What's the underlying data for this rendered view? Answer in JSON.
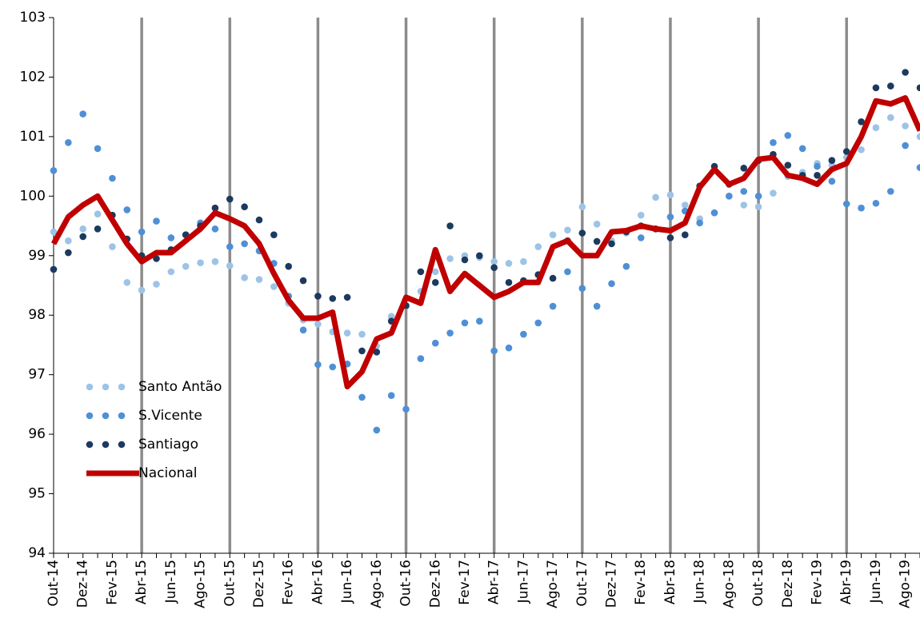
{
  "chart_data": {
    "type": "line",
    "categories": [
      "Out-14",
      null,
      "Dez-14",
      null,
      "Fev-15",
      null,
      "Abr-15",
      null,
      "Jun-15",
      null,
      "Ago-15",
      null,
      "Out-15",
      null,
      "Dez-15",
      null,
      "Fev-16",
      null,
      "Abr-16",
      null,
      "Jun-16",
      null,
      "Ago-16",
      null,
      "Out-16",
      null,
      "Dez-16",
      null,
      "Fev-17",
      null,
      "Abr-17",
      null,
      "Jun-17",
      null,
      "Ago-17",
      null,
      "Out-17",
      null,
      "Dez-17",
      null,
      "Fev-18",
      null,
      "Abr-18",
      null,
      "Jun-18",
      null,
      "Ago-18",
      null,
      "Out-18",
      null,
      "Dez-18",
      null,
      "Fev-19",
      null,
      "Abr-19",
      null,
      "Jun-19",
      null,
      "Ago-19",
      null
    ],
    "series": [
      {
        "name": "Santo Antão",
        "color": "#9dc3e6",
        "style": "dots",
        "values": [
          99.4,
          99.25,
          99.45,
          99.7,
          99.15,
          98.55,
          98.42,
          98.52,
          98.73,
          98.82,
          98.88,
          98.9,
          98.83,
          98.63,
          98.6,
          98.48,
          98.2,
          97.92,
          97.85,
          97.72,
          97.7,
          97.68,
          97.48,
          97.98,
          98.15,
          98.4,
          98.73,
          98.95,
          99.0,
          98.97,
          98.9,
          98.87,
          98.9,
          99.15,
          99.35,
          99.43,
          99.82,
          99.53,
          99.25,
          99.38,
          99.68,
          99.98,
          100.02,
          99.85,
          99.62,
          99.72,
          100.0,
          99.85,
          99.82,
          100.05,
          100.33,
          100.4,
          100.55,
          100.52,
          100.65,
          100.78,
          101.15,
          101.32,
          101.18,
          101.0
        ]
      },
      {
        "name": "S.Vicente",
        "color": "#4f8fd6",
        "style": "dots",
        "values": [
          100.43,
          100.9,
          101.38,
          100.8,
          100.3,
          99.77,
          99.4,
          99.58,
          99.3,
          99.35,
          99.55,
          99.45,
          99.15,
          99.2,
          99.08,
          98.87,
          98.32,
          97.75,
          97.17,
          97.13,
          97.18,
          96.62,
          96.07,
          96.65,
          96.42,
          97.27,
          97.53,
          97.7,
          97.87,
          97.9,
          97.4,
          97.45,
          97.68,
          97.87,
          98.15,
          98.73,
          98.45,
          98.15,
          98.53,
          98.82,
          99.3,
          99.45,
          99.65,
          99.75,
          99.55,
          99.72,
          100.0,
          100.08,
          100.0,
          100.9,
          101.02,
          100.8,
          100.5,
          100.25,
          99.87,
          99.8,
          99.88,
          100.08,
          100.85,
          100.48
        ]
      },
      {
        "name": "Santiago",
        "color": "#1c3a5e",
        "style": "dots",
        "values": [
          98.77,
          99.05,
          99.32,
          99.45,
          99.68,
          99.28,
          99.0,
          98.95,
          99.1,
          99.35,
          99.5,
          99.8,
          99.95,
          99.82,
          99.6,
          99.35,
          98.82,
          98.58,
          98.32,
          98.28,
          98.3,
          97.4,
          97.38,
          97.9,
          98.16,
          98.73,
          98.55,
          99.5,
          98.93,
          99.0,
          98.8,
          98.55,
          98.58,
          98.68,
          98.62,
          99.25,
          99.38,
          99.24,
          99.2,
          99.4,
          99.5,
          99.45,
          99.3,
          99.35,
          100.17,
          100.5,
          100.2,
          100.47,
          100.6,
          100.7,
          100.52,
          100.35,
          100.35,
          100.6,
          100.75,
          101.25,
          101.82,
          101.85,
          102.08,
          101.82
        ]
      },
      {
        "name": "Nacional",
        "color": "#c00000",
        "style": "line",
        "values": [
          99.2,
          99.65,
          99.85,
          100.0,
          99.6,
          99.2,
          98.9,
          99.05,
          99.05,
          99.25,
          99.45,
          99.72,
          99.62,
          99.5,
          99.2,
          98.7,
          98.25,
          97.95,
          97.95,
          98.05,
          96.8,
          97.05,
          97.6,
          97.7,
          98.3,
          98.2,
          99.1,
          98.4,
          98.7,
          98.5,
          98.3,
          98.4,
          98.55,
          98.55,
          99.15,
          99.25,
          99.0,
          99.0,
          99.4,
          99.42,
          99.5,
          99.45,
          99.42,
          99.55,
          100.15,
          100.45,
          100.2,
          100.3,
          100.62,
          100.65,
          100.35,
          100.3,
          100.2,
          100.45,
          100.55,
          101.0,
          101.6,
          101.55,
          101.65,
          101.1
        ]
      }
    ],
    "ylim": [
      94,
      103
    ],
    "yticks": [
      94,
      95,
      96,
      97,
      98,
      99,
      100,
      101,
      102,
      103
    ],
    "legend": "lower left"
  }
}
